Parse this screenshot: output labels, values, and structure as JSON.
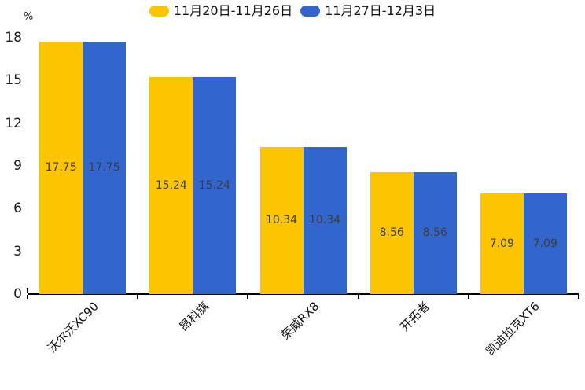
{
  "chart_data": {
    "type": "bar",
    "title": "",
    "unit_label": "%",
    "categories": [
      "沃尔沃XC90",
      "昂科旗",
      "荣威RX8",
      "开拓者",
      "凯迪拉克XT6"
    ],
    "series": [
      {
        "name": "11月20日-11月26日",
        "color": "#FDC500",
        "values": [
          17.75,
          15.24,
          10.34,
          8.56,
          7.09
        ]
      },
      {
        "name": "11月27日-12月3日",
        "color": "#3366CC",
        "values": [
          17.75,
          15.24,
          10.34,
          8.56,
          7.09
        ]
      }
    ],
    "ylim": [
      0,
      18
    ],
    "yticks": [
      0,
      3,
      6,
      9,
      12,
      15,
      18
    ],
    "grid": false,
    "legend_position": "top",
    "value_labels": "inside-center",
    "value_label_color": "#3d3d3d",
    "axis_color": "#000000",
    "background": "#ffffff"
  }
}
